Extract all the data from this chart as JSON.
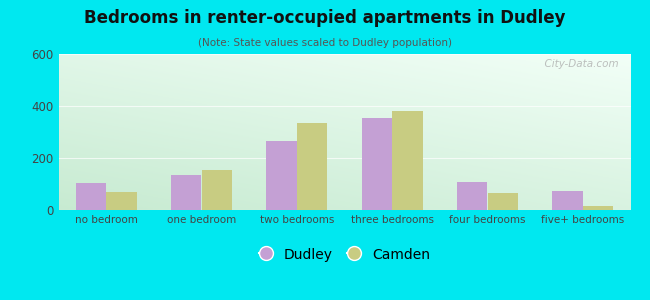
{
  "title": "Bedrooms in renter-occupied apartments in Dudley",
  "subtitle": "(Note: State values scaled to Dudley population)",
  "categories": [
    "no bedroom",
    "one bedroom",
    "two bedrooms",
    "three bedrooms",
    "four bedrooms",
    "five+ bedrooms"
  ],
  "dudley_values": [
    105,
    135,
    265,
    355,
    108,
    72
  ],
  "camden_values": [
    68,
    155,
    335,
    380,
    65,
    15
  ],
  "dudley_color": "#c4a0d4",
  "camden_color": "#c8cc82",
  "background_outer": "#00e8f0",
  "ylim": [
    0,
    600
  ],
  "yticks": [
    0,
    200,
    400,
    600
  ],
  "bar_width": 0.32,
  "legend_labels": [
    "Dudley",
    "Camden"
  ],
  "watermark": "  City-Data.com"
}
